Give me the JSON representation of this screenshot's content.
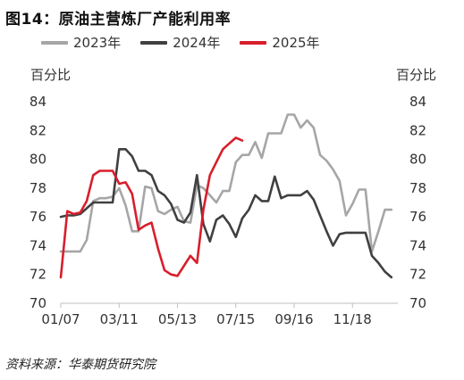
{
  "title": "图14：原油主营炼厂产能利用率",
  "unit_left": "百分比",
  "unit_right": "百分比",
  "source": "资料来源：华泰期货研究院",
  "chart_data": {
    "type": "line",
    "title": "图14：原油主营炼厂产能利用率",
    "ylabel": "百分比",
    "y2label": "百分比",
    "ylim": [
      70,
      84
    ],
    "yticks": [
      70,
      72,
      74,
      76,
      78,
      80,
      82,
      84
    ],
    "y2ticks": [
      70,
      72,
      74,
      76,
      78,
      80,
      82,
      84
    ],
    "xlim": [
      0,
      52
    ],
    "xticks": [
      {
        "label": "01/07",
        "week": 0
      },
      {
        "label": "03/11",
        "week": 9
      },
      {
        "label": "05/13",
        "week": 18
      },
      {
        "label": "07/15",
        "week": 27
      },
      {
        "label": "09/16",
        "week": 36
      },
      {
        "label": "11/18",
        "week": 45
      }
    ],
    "grid": false,
    "legend": "top",
    "series": [
      {
        "name": "2023年",
        "color": "#a6a6a6",
        "x": [
          0,
          1,
          2,
          3,
          4,
          5,
          6,
          7,
          8,
          9,
          10,
          11,
          12,
          13,
          14,
          15,
          16,
          17,
          18,
          19,
          20,
          21,
          22,
          23,
          24,
          25,
          26,
          27,
          28,
          29,
          30,
          31,
          32,
          33,
          34,
          35,
          36,
          37,
          38,
          39,
          40,
          41,
          42,
          43,
          44,
          45,
          46,
          47,
          48,
          49,
          50,
          51,
          52
        ],
        "values": [
          73.6,
          73.6,
          73.6,
          73.6,
          74.4,
          77.1,
          77.3,
          77.3,
          77.4,
          78.0,
          76.8,
          75.0,
          75.0,
          78.1,
          78.0,
          76.4,
          76.2,
          76.5,
          76.7,
          75.7,
          75.6,
          78.2,
          78.0,
          77.5,
          77.0,
          77.8,
          77.8,
          79.8,
          80.3,
          80.3,
          81.2,
          80.1,
          81.8,
          81.8,
          81.8,
          83.1,
          83.1,
          82.2,
          82.7,
          82.2,
          80.3,
          79.9,
          79.3,
          78.5,
          76.1,
          76.9,
          77.9,
          77.9,
          73.6,
          75.0,
          76.5,
          76.5,
          null
        ]
      },
      {
        "name": "2024年",
        "color": "#404040",
        "x": [
          0,
          1,
          2,
          3,
          4,
          5,
          6,
          7,
          8,
          9,
          10,
          11,
          12,
          13,
          14,
          15,
          16,
          17,
          18,
          19,
          20,
          21,
          22,
          23,
          24,
          25,
          26,
          27,
          28,
          29,
          30,
          31,
          32,
          33,
          34,
          35,
          36,
          37,
          38,
          39,
          40,
          41,
          42,
          43,
          44,
          45,
          46,
          47,
          48,
          49,
          50,
          51,
          52
        ],
        "values": [
          76.0,
          76.1,
          76.1,
          76.2,
          76.6,
          77.0,
          77.0,
          77.0,
          77.0,
          80.7,
          80.7,
          80.2,
          79.2,
          79.2,
          78.9,
          77.8,
          77.5,
          76.9,
          75.8,
          75.6,
          76.3,
          78.9,
          75.5,
          74.3,
          75.8,
          76.1,
          75.5,
          74.6,
          75.9,
          76.5,
          77.5,
          77.1,
          77.1,
          78.8,
          77.3,
          77.5,
          77.5,
          77.5,
          77.8,
          77.2,
          76.1,
          75.0,
          74.0,
          74.8,
          74.9,
          74.9,
          74.9,
          74.9,
          73.3,
          72.8,
          72.2,
          71.8,
          null
        ]
      },
      {
        "name": "2025年",
        "color": "#d81e2c",
        "x": [
          0,
          1,
          2,
          3,
          4,
          5,
          6,
          7,
          8,
          9,
          10,
          11,
          12,
          13,
          14,
          15,
          16,
          17,
          18,
          19,
          20,
          21,
          22,
          23,
          24,
          25,
          26,
          27,
          28
        ],
        "values": [
          71.8,
          76.4,
          76.2,
          76.3,
          77.1,
          78.9,
          79.2,
          79.2,
          79.2,
          78.3,
          78.4,
          77.6,
          75.1,
          75.4,
          75.6,
          73.8,
          72.3,
          72.0,
          71.9,
          72.6,
          73.3,
          72.8,
          76.5,
          78.9,
          79.8,
          80.7,
          81.1,
          81.5,
          81.3
        ]
      }
    ]
  }
}
